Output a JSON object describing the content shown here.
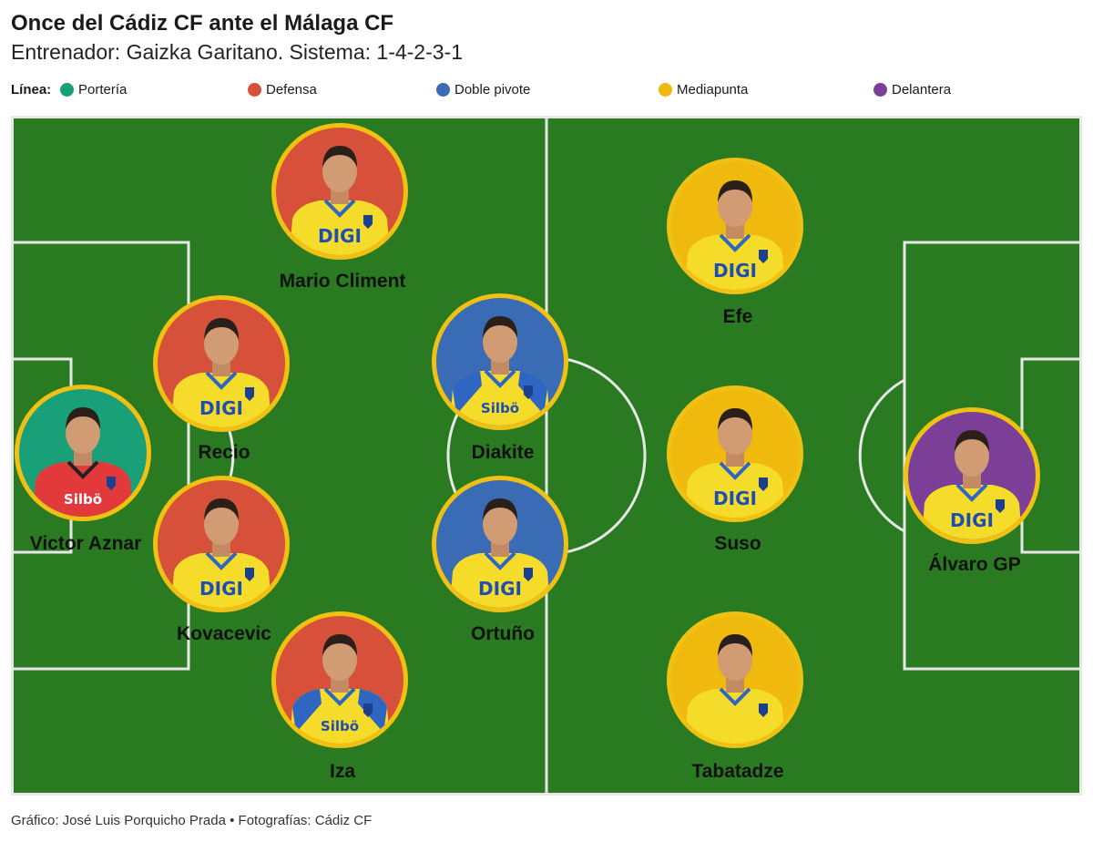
{
  "header": {
    "title": "Once del Cádiz CF ante el Málaga CF",
    "subtitle": "Entrenador: Gaizka Garitano. Sistema: 1-4-2-3-1"
  },
  "legend": {
    "title": "Línea:",
    "items": [
      {
        "label": "Portería",
        "color": "#1aa079"
      },
      {
        "label": "Defensa",
        "color": "#d6503a"
      },
      {
        "label": "Doble pivote",
        "color": "#3a6bb5"
      },
      {
        "label": "Mediapunta",
        "color": "#f0b90e"
      },
      {
        "label": "Delantera",
        "color": "#7c3f98"
      }
    ]
  },
  "colors": {
    "pitch": "#2a7a22",
    "lines": "#e8e8e8",
    "ring": "#f0c012",
    "shirt_yellow": "#f6dc2a",
    "shirt_red": "#e23a3a",
    "shirt_blue": "#2e66c2"
  },
  "players": [
    {
      "name": "Victor Aznar",
      "line": "Portería",
      "kit": "keeper",
      "sponsor": "Silbö"
    },
    {
      "name": "Mario Climent",
      "line": "Defensa",
      "kit": "home",
      "sponsor": "DIGI"
    },
    {
      "name": "Recio",
      "line": "Defensa",
      "kit": "home",
      "sponsor": "DIGI"
    },
    {
      "name": "Kovacevic",
      "line": "Defensa",
      "kit": "home",
      "sponsor": "DIGI"
    },
    {
      "name": "Iza",
      "line": "Defensa",
      "kit": "blue-trim",
      "sponsor": "Silbö"
    },
    {
      "name": "Diakite",
      "line": "Doble pivote",
      "kit": "blue-trim",
      "sponsor": "Silbö"
    },
    {
      "name": "Ortuño",
      "line": "Doble pivote",
      "kit": "home",
      "sponsor": "DIGI"
    },
    {
      "name": "Efe",
      "line": "Mediapunta",
      "kit": "home",
      "sponsor": "DIGI"
    },
    {
      "name": "Suso",
      "line": "Mediapunta",
      "kit": "home",
      "sponsor": "DIGI"
    },
    {
      "name": "Tabatadze",
      "line": "Mediapunta",
      "kit": "home",
      "sponsor": ""
    },
    {
      "name": "Álvaro GP",
      "line": "Delantera",
      "kit": "home",
      "sponsor": "DIGI"
    }
  ],
  "footer": {
    "credit": "Gráfico: José Luis Porquicho Prada • Fotografías: Cádiz CF"
  }
}
